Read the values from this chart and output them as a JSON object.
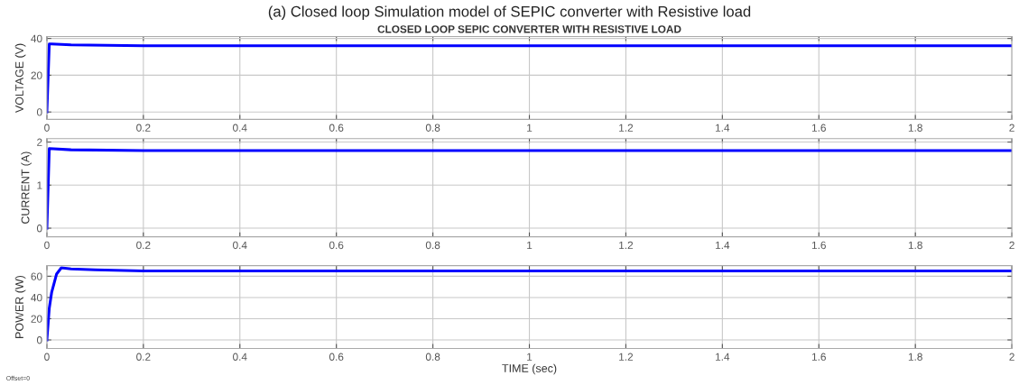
{
  "chart_data": [
    {
      "type": "line",
      "title": "(a) Closed loop Simulation model of SEPIC converter with Resistive load",
      "subtitle": "CLOSED LOOP SEPIC CONVERTER WITH RESISTIVE LOAD",
      "ylabel": "VOLTAGE (V)",
      "x": [
        0,
        0.005,
        0.01,
        0.05,
        0.2,
        2
      ],
      "series": [
        {
          "color": "#0000ff",
          "values": [
            0,
            37,
            37,
            36.5,
            36,
            36
          ]
        }
      ],
      "xlim": [
        0,
        2
      ],
      "xticks": [
        0,
        0.2,
        0.4,
        0.6,
        0.8,
        1,
        1.2,
        1.4,
        1.6,
        1.8,
        2
      ],
      "ylim": [
        -4,
        41
      ],
      "yticks": [
        0,
        20,
        40
      ],
      "grid": true
    },
    {
      "type": "line",
      "ylabel": "CURRENT (A)",
      "x": [
        0,
        0.005,
        0.05,
        0.2,
        2
      ],
      "series": [
        {
          "color": "#0000ff",
          "values": [
            0,
            1.85,
            1.82,
            1.8,
            1.8
          ]
        }
      ],
      "xlim": [
        0,
        2
      ],
      "xticks": [
        0,
        0.2,
        0.4,
        0.6,
        0.8,
        1,
        1.2,
        1.4,
        1.6,
        1.8,
        2
      ],
      "ylim": [
        -0.2,
        2.08
      ],
      "yticks": [
        0,
        1,
        2
      ],
      "grid": true
    },
    {
      "type": "line",
      "xlabel": "TIME (sec)",
      "ylabel": "POWER (W)",
      "annotations": [
        "Offset=0"
      ],
      "x": [
        0,
        0.005,
        0.01,
        0.02,
        0.03,
        0.05,
        0.1,
        0.2,
        2
      ],
      "series": [
        {
          "color": "#0000ff",
          "values": [
            0,
            30,
            45,
            62,
            68,
            67,
            66,
            65,
            65
          ]
        }
      ],
      "xlim": [
        0,
        2
      ],
      "xticks": [
        0,
        0.2,
        0.4,
        0.6,
        0.8,
        1,
        1.2,
        1.4,
        1.6,
        1.8,
        2
      ],
      "ylim": [
        -8,
        70
      ],
      "yticks": [
        0,
        20,
        40,
        60
      ],
      "grid": true
    }
  ]
}
